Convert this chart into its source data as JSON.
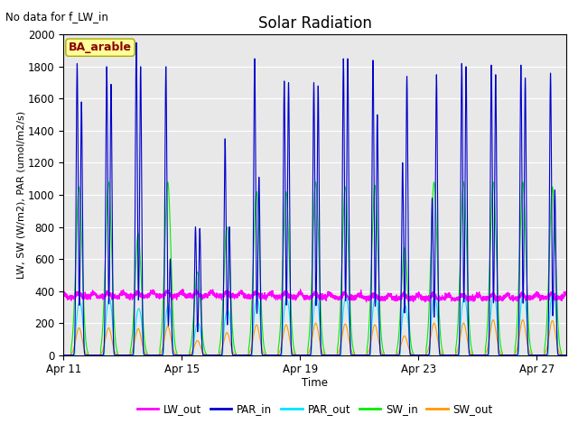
{
  "title": "Solar Radiation",
  "subtitle": "No data for f_LW_in",
  "xlabel": "Time",
  "ylabel": "LW, SW (W/m2), PAR (umol/m2/s)",
  "annotation": "BA_arable",
  "ylim": [
    0,
    2000
  ],
  "yticks": [
    0,
    200,
    400,
    600,
    800,
    1000,
    1200,
    1400,
    1600,
    1800,
    2000
  ],
  "xtick_labels": [
    "Apr 11",
    "Apr 15",
    "Apr 19",
    "Apr 23",
    "Apr 27"
  ],
  "xtick_positions": [
    0,
    4,
    8,
    12,
    16
  ],
  "colors": {
    "LW_out": "#ff00ff",
    "PAR_in": "#0000cc",
    "PAR_out": "#00e5ff",
    "SW_in": "#00ee00",
    "SW_out": "#ff9900"
  },
  "bg_color": "#e8e8e8",
  "grid_color": "#ffffff",
  "num_days": 17,
  "day_par_peaks": [
    1820,
    1800,
    1950,
    1800,
    800,
    1350,
    1850,
    1710,
    1700,
    1850,
    1840,
    1200,
    980,
    1820,
    1810,
    1810,
    1760
  ],
  "day_par_peaks2": [
    1580,
    1690,
    1800,
    600,
    790,
    800,
    1110,
    1700,
    1680,
    1850,
    1500,
    1740,
    1750,
    1800,
    1750,
    1730,
    1030
  ],
  "day_sw_peaks": [
    1050,
    1080,
    760,
    1080,
    520,
    800,
    1020,
    1020,
    1080,
    1050,
    1060,
    670,
    1080,
    1080,
    1080,
    1080,
    1050
  ],
  "day_swout_peaks": [
    170,
    170,
    165,
    180,
    90,
    140,
    190,
    190,
    200,
    195,
    190,
    120,
    200,
    200,
    220,
    220,
    215
  ],
  "day_parout_peaks": [
    330,
    350,
    290,
    310,
    200,
    280,
    350,
    350,
    360,
    360,
    360,
    310,
    360,
    360,
    380,
    390,
    400
  ]
}
